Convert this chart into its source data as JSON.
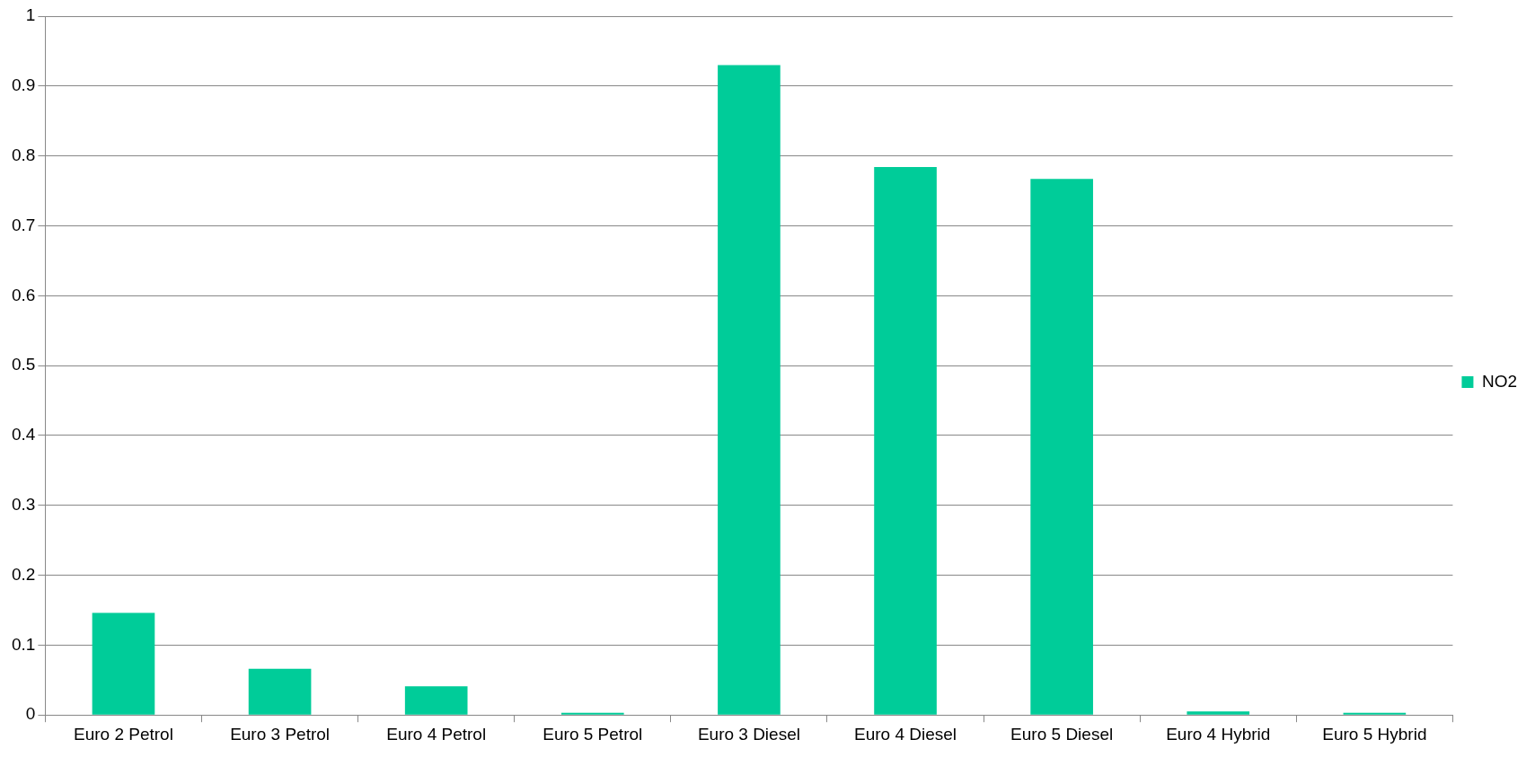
{
  "chart_data": {
    "type": "bar",
    "categories": [
      "Euro 2 Petrol",
      "Euro 3 Petrol",
      "Euro 4 Petrol",
      "Euro 5 Petrol",
      "Euro 3 Diesel",
      "Euro 4 Diesel",
      "Euro 5 Diesel",
      "Euro 4 Hybrid",
      "Euro 5 Hybrid"
    ],
    "series": [
      {
        "name": "NO2",
        "color": "#00cc99",
        "values": [
          0.146,
          0.066,
          0.041,
          0.003,
          0.93,
          0.784,
          0.767,
          0.005,
          0.003
        ]
      }
    ],
    "ylim": [
      0,
      1
    ],
    "yticks": [
      0,
      0.1,
      0.2,
      0.3,
      0.4,
      0.5,
      0.6,
      0.7,
      0.8,
      0.9,
      1
    ],
    "grid": "y",
    "legend": "right"
  }
}
